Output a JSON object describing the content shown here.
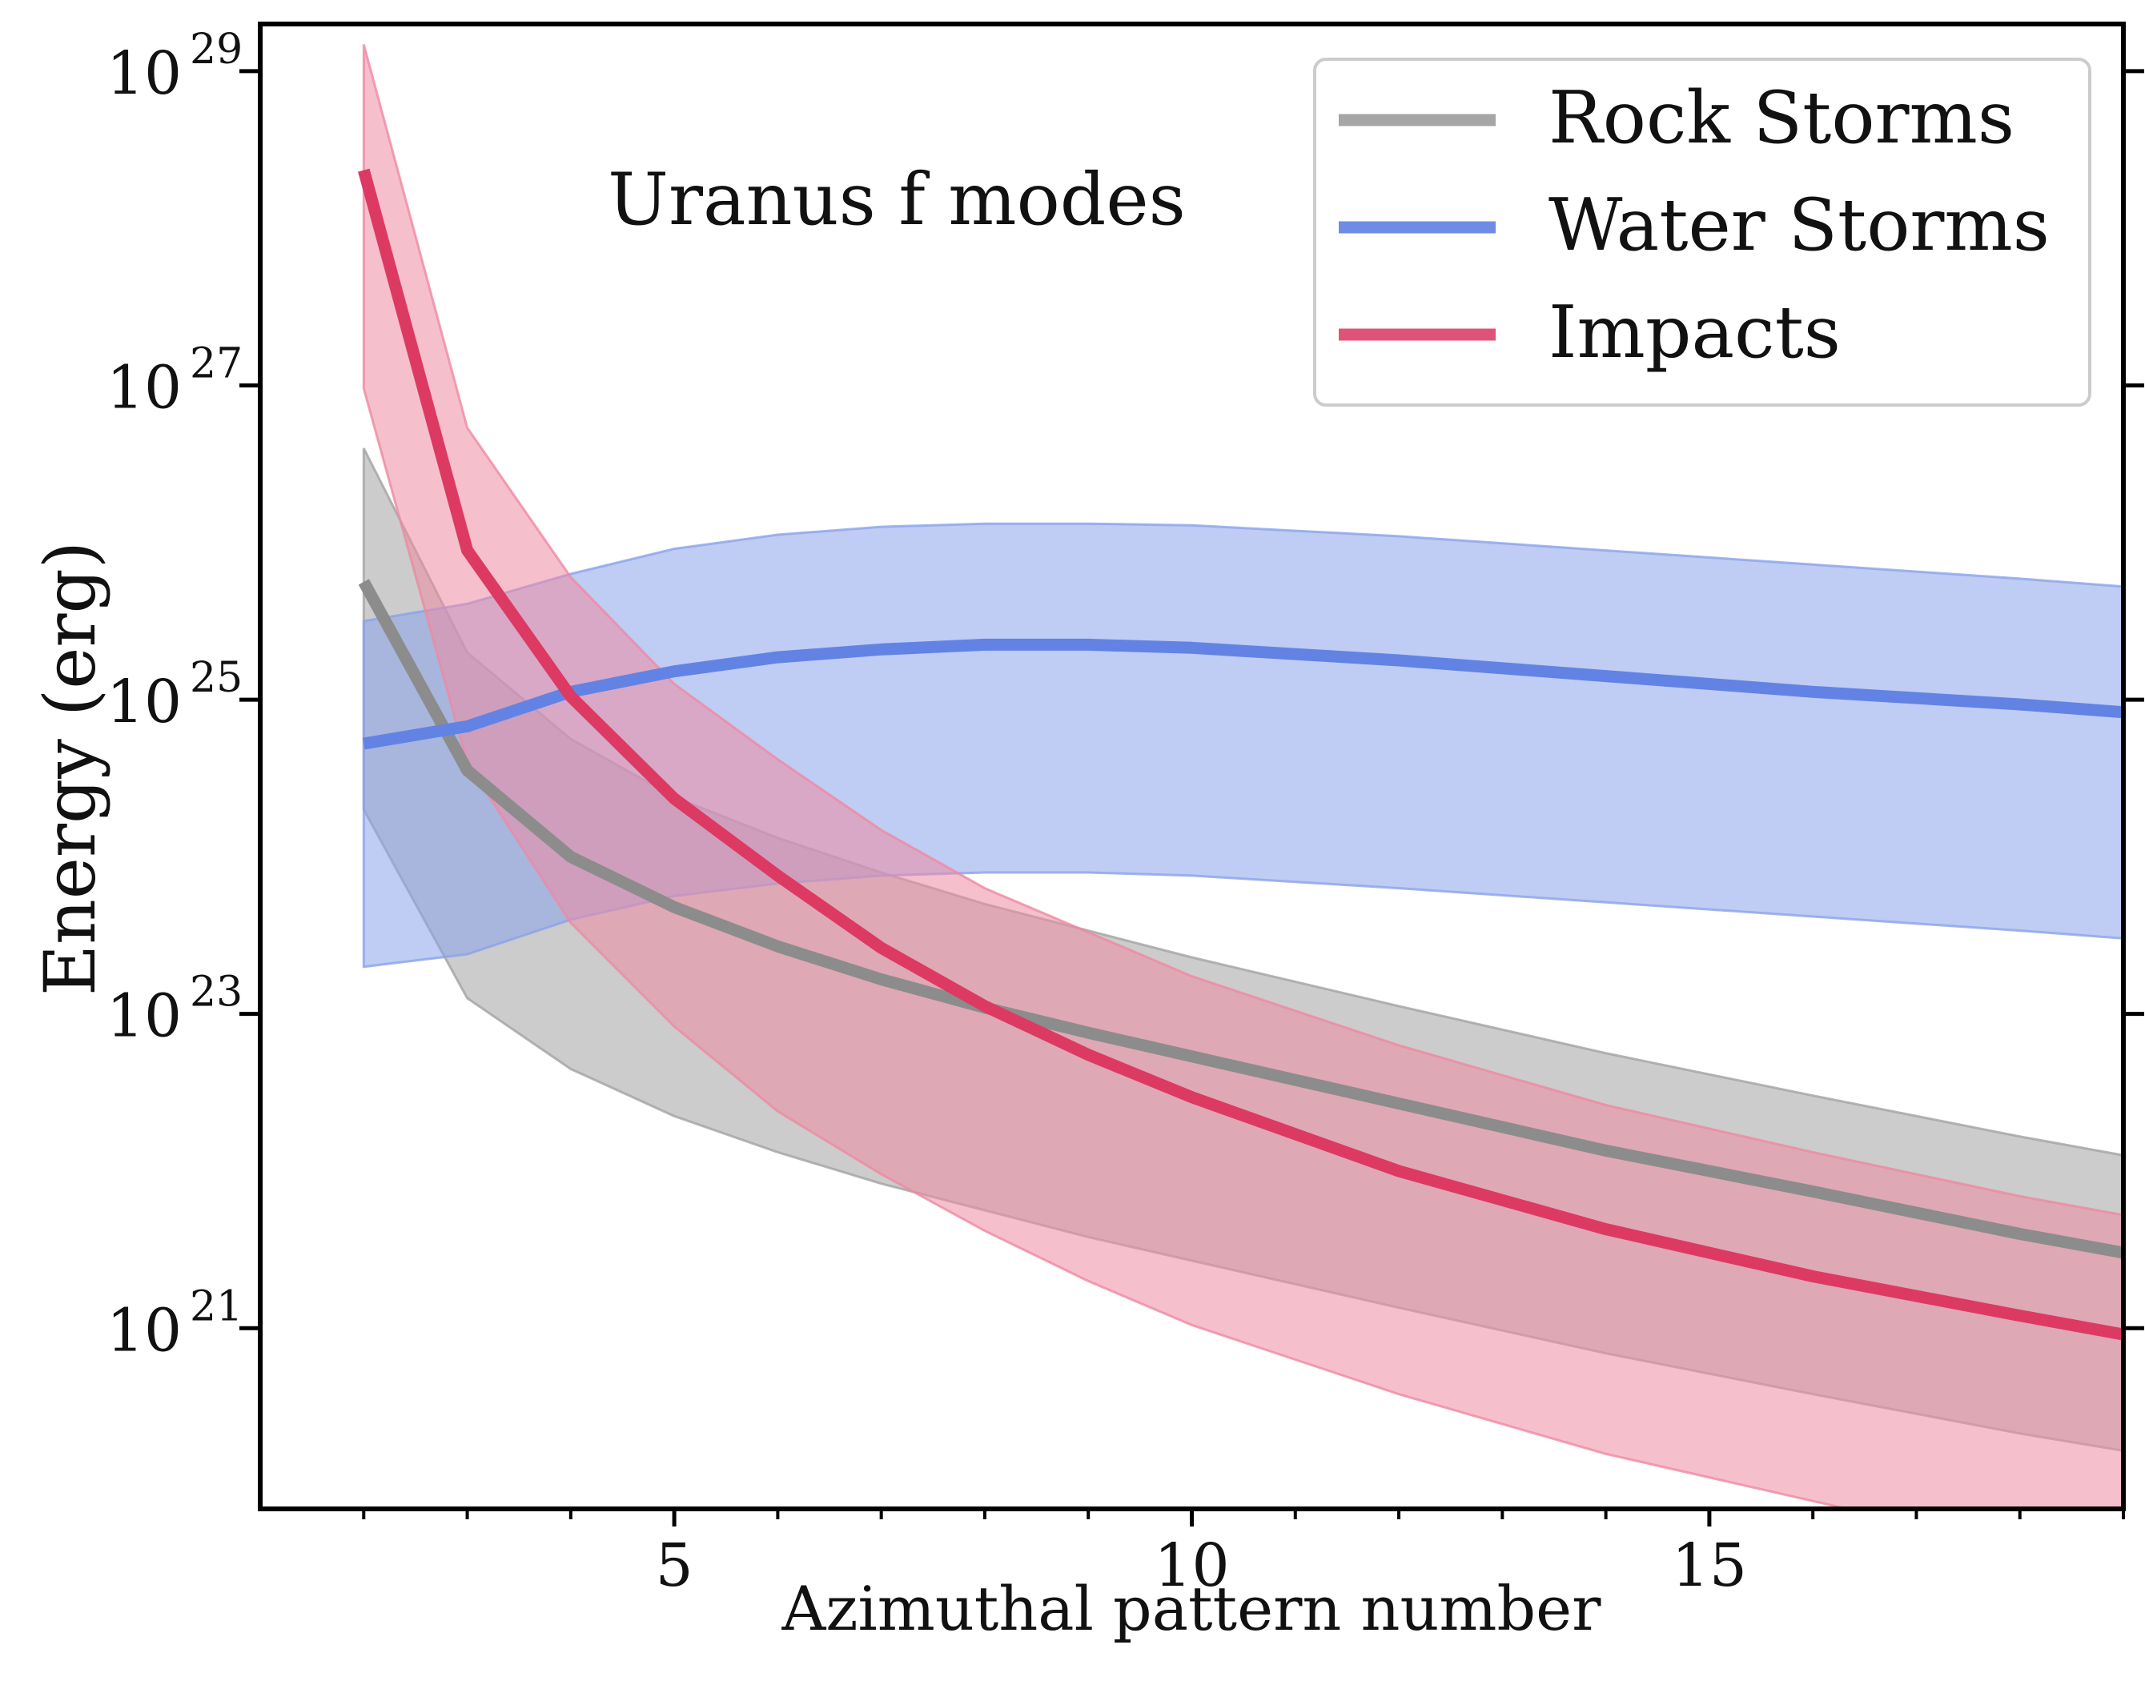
{
  "chart_data": {
    "type": "line",
    "title": "Uranus f modes",
    "xlabel": "Azimuthal pattern number",
    "ylabel": "Energy (erg)",
    "xlim": [
      1,
      19
    ],
    "ylim_log10": [
      19.85,
      29.3
    ],
    "yscale": "log",
    "x_major_ticks": [
      5,
      10,
      15
    ],
    "x_tick_labels": [
      "5",
      "10",
      "15"
    ],
    "y_major_ticks_log10": [
      21,
      23,
      25,
      27,
      29
    ],
    "y_tick_labels": [
      {
        "base": "10",
        "exp": "21"
      },
      {
        "base": "10",
        "exp": "23"
      },
      {
        "base": "10",
        "exp": "25"
      },
      {
        "base": "10",
        "exp": "27"
      },
      {
        "base": "10",
        "exp": "29"
      }
    ],
    "legend_position": "top-right",
    "grid": false,
    "series": [
      {
        "name": "Rock Storms",
        "color": "#8c8c8c",
        "legend_color": "#a6a6a6",
        "band_color": "#a3a3a3",
        "x": [
          2,
          3,
          4,
          5,
          6,
          7,
          8,
          9,
          10,
          12,
          14,
          16,
          18,
          19
        ],
        "y_log10": [
          25.75,
          24.55,
          24.0,
          23.68,
          23.43,
          23.22,
          23.04,
          22.88,
          22.73,
          22.43,
          22.13,
          21.87,
          21.6,
          21.48
        ],
        "upper_log10": [
          26.6,
          25.3,
          24.75,
          24.38,
          24.12,
          23.9,
          23.7,
          23.53,
          23.36,
          23.05,
          22.75,
          22.48,
          22.22,
          22.1
        ],
        "lower_log10": [
          24.3,
          23.1,
          22.65,
          22.35,
          22.12,
          21.92,
          21.75,
          21.58,
          21.43,
          21.13,
          20.84,
          20.58,
          20.33,
          20.22
        ]
      },
      {
        "name": "Water Storms",
        "color": "#6283e4",
        "legend_color": "#6e8ce6",
        "band_color": "#8aa2ea",
        "x": [
          2,
          3,
          4,
          5,
          6,
          7,
          8,
          9,
          10,
          12,
          14,
          16,
          18,
          19
        ],
        "y_log10": [
          24.72,
          24.83,
          25.05,
          25.18,
          25.27,
          25.32,
          25.35,
          25.35,
          25.33,
          25.25,
          25.15,
          25.05,
          24.97,
          24.92
        ],
        "upper_log10": [
          25.5,
          25.61,
          25.8,
          25.96,
          26.05,
          26.1,
          26.12,
          26.12,
          26.11,
          26.04,
          25.95,
          25.86,
          25.77,
          25.72
        ],
        "lower_log10": [
          23.3,
          23.38,
          23.6,
          23.75,
          23.83,
          23.88,
          23.9,
          23.9,
          23.88,
          23.8,
          23.71,
          23.62,
          23.53,
          23.48
        ]
      },
      {
        "name": "Impacts",
        "color": "#dc3a62",
        "legend_color": "#e05378",
        "band_color": "#ee8aa2",
        "x": [
          2,
          3,
          4,
          5,
          6,
          7,
          8,
          9,
          10,
          12,
          14,
          16,
          18,
          19
        ],
        "y_log10": [
          28.37,
          25.95,
          25.02,
          24.37,
          23.88,
          23.42,
          23.05,
          22.74,
          22.47,
          22.0,
          21.63,
          21.33,
          21.08,
          20.96
        ],
        "upper_log10": [
          29.17,
          26.73,
          25.78,
          25.1,
          24.62,
          24.17,
          23.8,
          23.52,
          23.24,
          22.8,
          22.42,
          22.12,
          21.84,
          21.72
        ],
        "lower_log10": [
          26.98,
          24.6,
          23.58,
          22.92,
          22.38,
          21.98,
          21.62,
          21.3,
          21.02,
          20.58,
          20.2,
          19.9,
          19.6,
          19.48
        ]
      }
    ]
  }
}
